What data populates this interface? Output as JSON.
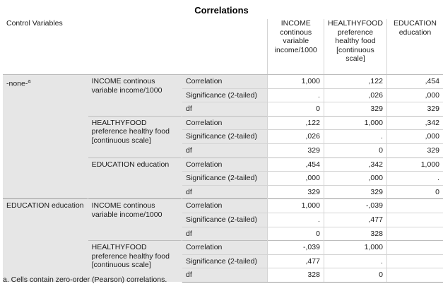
{
  "title": "Correlations",
  "header": {
    "control_variables": "Control Variables",
    "columns": [
      "INCOME continous variable income/1000",
      "HEALTHYFOOD preference healthy food [continuous scale]",
      "EDUCATION education"
    ]
  },
  "groups": [
    {
      "control": "-none-",
      "control_sup": "a",
      "blocks": [
        {
          "variable": "INCOME continous variable income/1000",
          "rows": [
            {
              "stat": "Correlation",
              "values": [
                "1,000",
                ",122",
                ",454"
              ]
            },
            {
              "stat": "Significance (2-tailed)",
              "values": [
                ".",
                ",026",
                ",000"
              ]
            },
            {
              "stat": "df",
              "values": [
                "0",
                "329",
                "329"
              ]
            }
          ]
        },
        {
          "variable": "HEALTHYFOOD preference healthy food [continuous scale]",
          "rows": [
            {
              "stat": "Correlation",
              "values": [
                ",122",
                "1,000",
                ",342"
              ]
            },
            {
              "stat": "Significance (2-tailed)",
              "values": [
                ",026",
                ".",
                ",000"
              ]
            },
            {
              "stat": "df",
              "values": [
                "329",
                "0",
                "329"
              ]
            }
          ]
        },
        {
          "variable": "EDUCATION education",
          "rows": [
            {
              "stat": "Correlation",
              "values": [
                ",454",
                ",342",
                "1,000"
              ]
            },
            {
              "stat": "Significance (2-tailed)",
              "values": [
                ",000",
                ",000",
                "."
              ]
            },
            {
              "stat": "df",
              "values": [
                "329",
                "329",
                "0"
              ]
            }
          ]
        }
      ]
    },
    {
      "control": "EDUCATION education",
      "control_sup": "",
      "blocks": [
        {
          "variable": "INCOME continous variable income/1000",
          "rows": [
            {
              "stat": "Correlation",
              "values": [
                "1,000",
                "-,039",
                ""
              ]
            },
            {
              "stat": "Significance (2-tailed)",
              "values": [
                ".",
                ",477",
                ""
              ]
            },
            {
              "stat": "df",
              "values": [
                "0",
                "328",
                ""
              ]
            }
          ]
        },
        {
          "variable": "HEALTHYFOOD preference healthy food [continuous scale]",
          "rows": [
            {
              "stat": "Correlation",
              "values": [
                "-,039",
                "1,000",
                ""
              ]
            },
            {
              "stat": "Significance (2-tailed)",
              "values": [
                ",477",
                ".",
                ""
              ]
            },
            {
              "stat": "df",
              "values": [
                "328",
                "0",
                ""
              ]
            }
          ]
        }
      ]
    }
  ],
  "footnote": "a. Cells contain zero-order (Pearson) correlations."
}
